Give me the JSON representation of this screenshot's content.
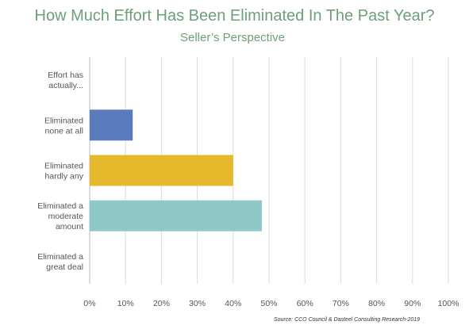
{
  "title": "How Much Effort Has Been Eliminated In The Past Year?",
  "subtitle": "Seller’s Perspective",
  "source": "Source: CCO Council & Dasteel Consulting Research-2019",
  "chart_data": {
    "type": "bar",
    "orientation": "horizontal",
    "categories": [
      [
        "Effort has",
        "actually..."
      ],
      [
        "Eliminated",
        "none at all"
      ],
      [
        "Eliminated",
        "hardly any"
      ],
      [
        "Eliminated a",
        "moderate",
        "amount"
      ],
      [
        "Eliminated a",
        "great deal"
      ]
    ],
    "values": [
      0,
      12,
      40,
      48,
      0
    ],
    "colors": [
      "#5b7bbf",
      "#5b7bbf",
      "#e6b92d",
      "#8ec8c9",
      "#8ec8c9"
    ],
    "xlim": [
      0,
      100
    ],
    "xticks": [
      "0%",
      "10%",
      "20%",
      "30%",
      "40%",
      "50%",
      "60%",
      "70%",
      "80%",
      "90%",
      "100%"
    ],
    "grid": true
  }
}
